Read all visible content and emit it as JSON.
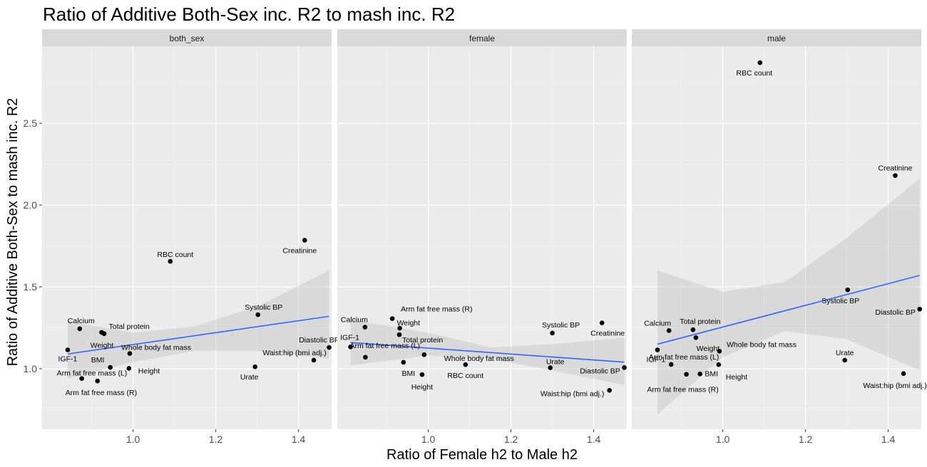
{
  "chart_data": {
    "type": "scatter",
    "title": "Ratio of Additive Both-Sex inc. R2 to mash inc. R2",
    "xlabel": "Ratio of Female h2 to Male h2",
    "ylabel": "Ratio of Additive Both-Sex to mash inc. R2",
    "xlim": [
      0.78,
      1.48
    ],
    "ylim": [
      0.63,
      2.97
    ],
    "xticks": [
      1.0,
      1.2,
      1.4
    ],
    "xtick_labels": [
      "1.0",
      "1.2",
      "1.4"
    ],
    "yticks": [
      1.0,
      1.5,
      2.0,
      2.5
    ],
    "ytick_labels": [
      "1.0",
      "1.5",
      "2.0",
      "2.5"
    ],
    "grid": true,
    "legend": "none",
    "panels": [
      {
        "name": "both_sex",
        "points": [
          {
            "label": "IGF-1",
            "x": 0.842,
            "y": 1.115
          },
          {
            "label": "Calcium",
            "x": 0.871,
            "y": 1.244
          },
          {
            "label": "Total protein",
            "x": 0.924,
            "y": 1.222
          },
          {
            "label": "Weight",
            "x": 0.93,
            "y": 1.214
          },
          {
            "label": "Arm fat free mass (L)",
            "x": 0.876,
            "y": 0.94
          },
          {
            "label": "Arm fat free mass (R)",
            "x": 0.914,
            "y": 0.925
          },
          {
            "label": "BMI",
            "x": 0.945,
            "y": 1.008
          },
          {
            "label": "Height",
            "x": 0.99,
            "y": 1.002
          },
          {
            "label": "Whole body fat mass",
            "x": 0.992,
            "y": 1.093
          },
          {
            "label": "RBC count",
            "x": 1.09,
            "y": 1.656
          },
          {
            "label": "Systolic BP",
            "x": 1.302,
            "y": 1.33
          },
          {
            "label": "Urate",
            "x": 1.295,
            "y": 1.012
          },
          {
            "label": "Creatinine",
            "x": 1.415,
            "y": 1.785
          },
          {
            "label": "Waist:hip (bmi adj.)",
            "x": 1.437,
            "y": 1.052
          },
          {
            "label": "Diastolic BP",
            "x": 1.474,
            "y": 1.13
          }
        ],
        "trend": {
          "x": [
            0.842,
            1.474
          ],
          "y": [
            1.09,
            1.32
          ]
        },
        "band": {
          "x": [
            0.842,
            1.0,
            1.15,
            1.3,
            1.474
          ],
          "lower": [
            0.94,
            1.04,
            1.11,
            1.11,
            1.06
          ],
          "upper": [
            1.29,
            1.22,
            1.26,
            1.38,
            1.6
          ]
        }
      },
      {
        "name": "female",
        "points": [
          {
            "label": "IGF-1",
            "x": 0.812,
            "y": 1.133
          },
          {
            "label": "Calcium",
            "x": 0.847,
            "y": 1.254
          },
          {
            "label": "Arm fat free mass (R)",
            "x": 0.913,
            "y": 1.306
          },
          {
            "label": "Weight",
            "x": 0.931,
            "y": 1.248
          },
          {
            "label": "Total protein",
            "x": 0.93,
            "y": 1.208
          },
          {
            "label": "Arm fat free mass (L)",
            "x": 0.848,
            "y": 1.07
          },
          {
            "label": "Whole body fat mass",
            "x": 0.99,
            "y": 1.086
          },
          {
            "label": "BMI",
            "x": 0.94,
            "y": 1.039
          },
          {
            "label": "Height",
            "x": 0.985,
            "y": 0.964
          },
          {
            "label": "RBC count",
            "x": 1.09,
            "y": 1.025
          },
          {
            "label": "Systolic BP",
            "x": 1.3,
            "y": 1.218
          },
          {
            "label": "Urate",
            "x": 1.295,
            "y": 1.006
          },
          {
            "label": "Creatinine",
            "x": 1.42,
            "y": 1.28
          },
          {
            "label": "Diastolic BP",
            "x": 1.474,
            "y": 1.007
          },
          {
            "label": "Waist:hip (bmi adj.)",
            "x": 1.438,
            "y": 0.868
          }
        ],
        "trend": {
          "x": [
            0.812,
            1.474
          ],
          "y": [
            1.16,
            1.04
          ]
        },
        "band": {
          "x": [
            0.812,
            1.0,
            1.15,
            1.3,
            1.474
          ],
          "lower": [
            1.02,
            1.08,
            1.06,
            0.99,
            0.9
          ],
          "upper": [
            1.3,
            1.22,
            1.13,
            1.15,
            1.19
          ]
        }
      },
      {
        "name": "male",
        "points": [
          {
            "label": "RBC count",
            "x": 1.09,
            "y": 2.87
          },
          {
            "label": "Creatinine",
            "x": 1.417,
            "y": 2.18
          },
          {
            "label": "Systolic BP",
            "x": 1.302,
            "y": 1.482
          },
          {
            "label": "Diastolic BP",
            "x": 1.476,
            "y": 1.364
          },
          {
            "label": "Calcium",
            "x": 0.87,
            "y": 1.233
          },
          {
            "label": "Total protein",
            "x": 0.928,
            "y": 1.238
          },
          {
            "label": "Weight",
            "x": 0.935,
            "y": 1.19
          },
          {
            "label": "IGF-1",
            "x": 0.842,
            "y": 1.115
          },
          {
            "label": "Whole body fat mass",
            "x": 0.992,
            "y": 1.107
          },
          {
            "label": "Arm fat free mass (L)",
            "x": 0.875,
            "y": 1.026
          },
          {
            "label": "Urate",
            "x": 1.295,
            "y": 1.052
          },
          {
            "label": "Height",
            "x": 0.99,
            "y": 1.025
          },
          {
            "label": "BMI",
            "x": 0.945,
            "y": 0.968
          },
          {
            "label": "Arm fat free mass (R)",
            "x": 0.912,
            "y": 0.966
          },
          {
            "label": "Waist:hip (bmi adj.)",
            "x": 1.437,
            "y": 0.97
          }
        ],
        "trend": {
          "x": [
            0.842,
            1.476
          ],
          "y": [
            1.15,
            1.57
          ]
        },
        "band": {
          "x": [
            0.842,
            1.0,
            1.15,
            1.3,
            1.476
          ],
          "lower": [
            0.72,
            1.07,
            1.23,
            1.18,
            0.99
          ],
          "upper": [
            1.6,
            1.47,
            1.53,
            1.8,
            2.16
          ]
        }
      }
    ]
  }
}
